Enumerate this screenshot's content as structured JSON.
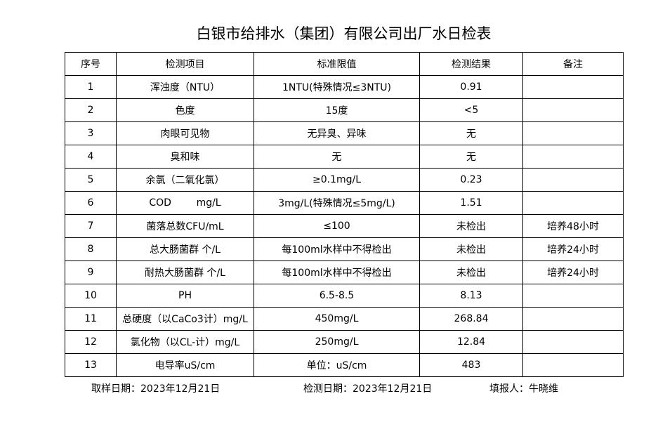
{
  "header": {
    "title": "白银市给排水（集团）有限公司出厂水日检表"
  },
  "table": {
    "columns": [
      "序号",
      "检测项目",
      "标准限值",
      "检测结果",
      "备注"
    ],
    "rows": [
      [
        "1",
        "浑浊度（NTU）",
        "1NTU(特殊情况≤3NTU)",
        "0.91"
      ],
      [
        "2",
        "色度",
        "15度",
        "<5"
      ],
      [
        "3",
        "肉眼可见物",
        "无异臭、异味",
        "无"
      ],
      [
        "4",
        "臭和味",
        "无",
        "无"
      ],
      [
        "5",
        "余氯（二氧化氯）",
        "≥0.1mg/L",
        "0.23"
      ],
      [
        "6",
        "COD        mg/L",
        "3mg/L(特殊情况≤5mg/L)",
        "1.51"
      ],
      [
        "7",
        "菌落总数CFU/mL",
        "≤100",
        "未检出",
        "培养48小时"
      ],
      [
        "8",
        "总大肠菌群 个/L",
        "每100ml水样中不得检出",
        "未检出",
        "培养24小时"
      ],
      [
        "9",
        "耐热大肠菌群 个/L",
        "每100ml水样中不得检出",
        "未检出",
        "培养24小时"
      ],
      [
        "10",
        "PH",
        "6.5-8.5",
        "8.13"
      ],
      [
        "11",
        "总硬度（以CaCo3计）mg/L",
        "450mg/L",
        "268.84"
      ],
      [
        "12",
        "氯化物（以CL-计）mg/L",
        "250mg/L",
        "12.84"
      ],
      [
        "13",
        "电导率uS/cm",
        "单位：uS/cm",
        "483"
      ]
    ]
  },
  "footer": {
    "sampling_date": "取样日期：2023年12月21日",
    "test_date": "检测日期：2023年12月21日",
    "reporter": "填报人：牛晓维"
  }
}
